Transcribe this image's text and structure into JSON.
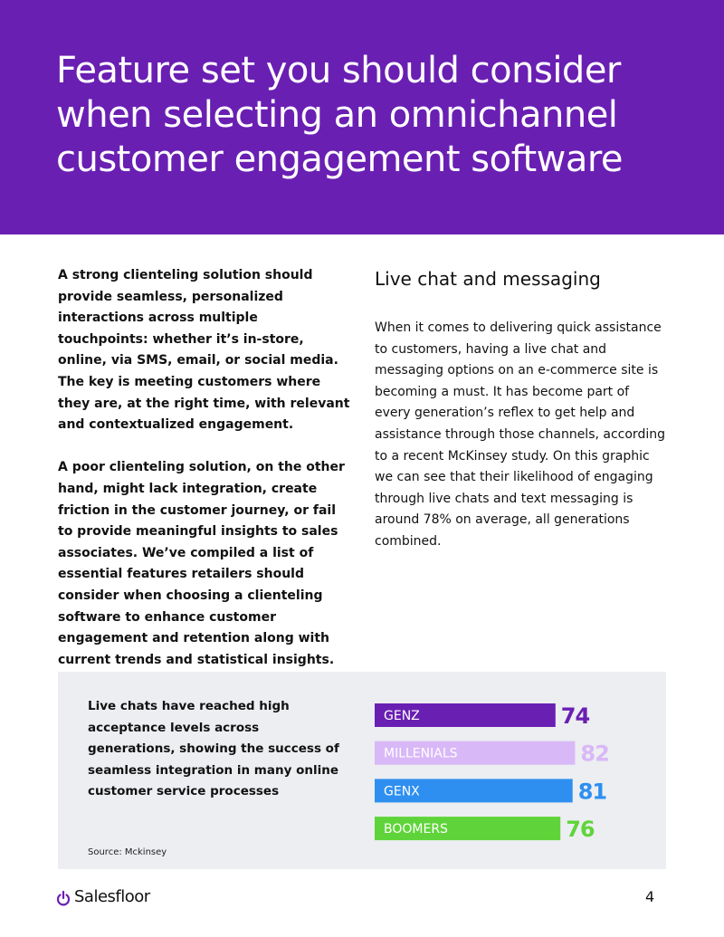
{
  "header": {
    "title_lines": [
      "Feature set you should consider",
      "when selecting an omnichannel",
      "customer engagement software"
    ]
  },
  "left_column": {
    "paragraphs": [
      "A strong clienteling solution should provide seamless, personalized interactions across multiple touchpoints: whether it’s in-store, online, via SMS, email, or social media. The key is meeting customers where they are, at the right time, with relevant and contextualized engagement.",
      "A poor clienteling solution, on the other hand, might lack integration, create friction in the customer journey, or fail to provide meaningful insights to sales associates. We’ve compiled a list of essential features retailers should consider when choosing a clienteling software to enhance customer engagement and retention along with current trends and statistical insights."
    ]
  },
  "right_column": {
    "heading": "Live chat and messaging",
    "paragraph": "When it comes to delivering quick assistance to customers, having a live chat and messaging options on an e-commerce site is becoming a must. It has become part of every generation’s reflex to get help and assistance through those channels, according to a recent McKinsey study. On this graphic we can see that their likelihood of engaging through live chats and text messaging is around 78% on average, all generations combined."
  },
  "chart_data": {
    "type": "bar",
    "orientation": "horizontal",
    "caption": "Live chats have reached high acceptance levels across generations, showing the success of seamless integration in many online customer service processes",
    "source": "Source: Mckinsey",
    "categories": [
      "GENZ",
      "MILLENIALS",
      "GENX",
      "BOOMERS"
    ],
    "values": [
      74,
      82,
      81,
      76
    ],
    "colors": [
      "#6a1fb3",
      "#d9b8f7",
      "#2e8ff0",
      "#5fd43a"
    ],
    "xlim": [
      0,
      100
    ]
  },
  "footer": {
    "brand": "Salesfloor",
    "page_number": "4"
  }
}
